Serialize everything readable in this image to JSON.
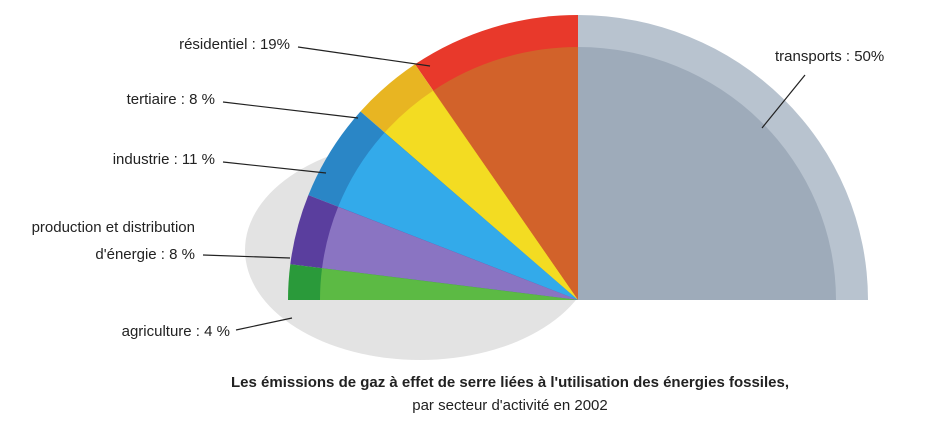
{
  "chart_data": {
    "type": "pie",
    "title": "Les émissions de gaz à effet de serre liées à l'utilisation des énergies fossiles,",
    "subtitle": "par secteur d'activité en 2002",
    "values": [
      50,
      19,
      8,
      11,
      8,
      4
    ],
    "value_labels": [
      "transports : 50%",
      "résidentiel : 19%",
      "tertiaire : 8 %",
      "industrie : 11 %",
      "production et distribution d'énergie : 8 %",
      "agriculture : 4 %"
    ],
    "colors": [
      "#9eabba",
      "#d2622a",
      "#f3dc22",
      "#33aaea",
      "#8a74c2",
      "#5cba44"
    ],
    "rim_colors": [
      "#b8c3cf",
      "#e8392b",
      "#e8b522",
      "#2a86c6",
      "#5a3e9e",
      "#2a9a3a"
    ]
  }
}
